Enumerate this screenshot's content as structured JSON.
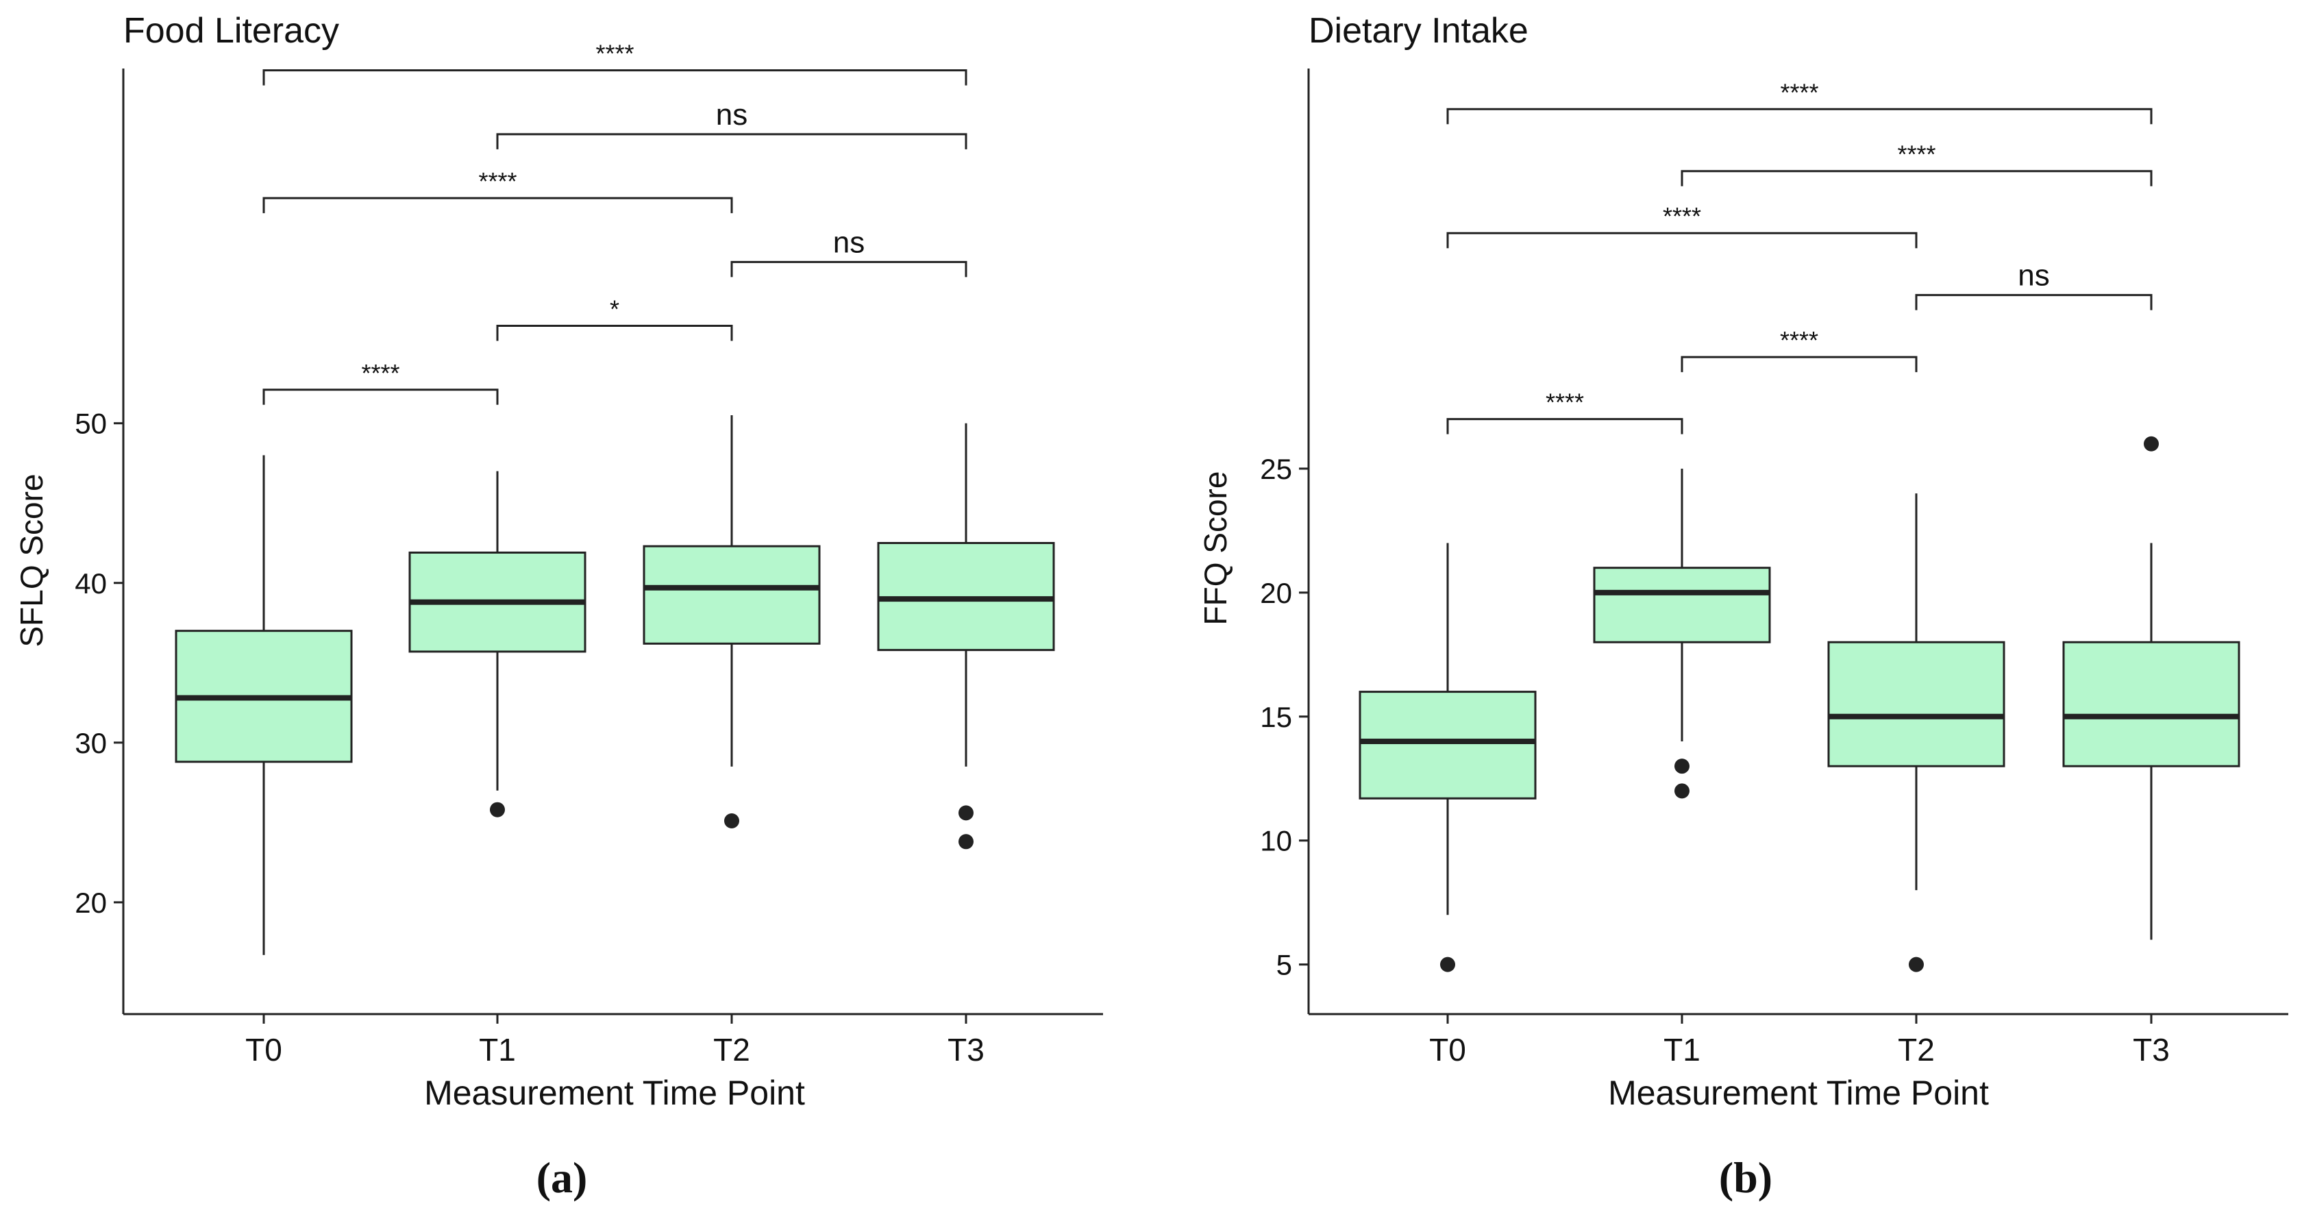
{
  "colors": {
    "box_fill": "#b5f7cd",
    "ink": "#222222"
  },
  "chart_data": [
    {
      "panel": "(a)",
      "type": "boxplot",
      "title": "Food Literacy",
      "xlabel": "Measurement Time Point",
      "ylabel": "SFLQ Score",
      "categories": [
        "T0",
        "T1",
        "T2",
        "T3"
      ],
      "ylim": [
        13,
        72
      ],
      "yticks": [
        20,
        30,
        40,
        50
      ],
      "boxes": [
        {
          "q1": 28.8,
          "median": 32.8,
          "q3": 37.0,
          "whisker_low": 16.7,
          "whisker_high": 48.0,
          "outliers": []
        },
        {
          "q1": 35.7,
          "median": 38.8,
          "q3": 41.9,
          "whisker_low": 27.0,
          "whisker_high": 47.0,
          "outliers": [
            25.8
          ]
        },
        {
          "q1": 36.2,
          "median": 39.7,
          "q3": 42.3,
          "whisker_low": 28.5,
          "whisker_high": 50.5,
          "outliers": [
            25.1
          ]
        },
        {
          "q1": 35.8,
          "median": 39.0,
          "q3": 42.5,
          "whisker_low": 28.5,
          "whisker_high": 50.0,
          "outliers": [
            25.6,
            23.8
          ]
        }
      ],
      "comparisons": [
        {
          "from": 0,
          "to": 1,
          "y": 52.1,
          "label": "****"
        },
        {
          "from": 1,
          "to": 2,
          "y": 56.1,
          "label": "*"
        },
        {
          "from": 2,
          "to": 3,
          "y": 60.1,
          "label": "ns"
        },
        {
          "from": 0,
          "to": 2,
          "y": 64.1,
          "label": "****"
        },
        {
          "from": 1,
          "to": 3,
          "y": 68.1,
          "label": "ns"
        },
        {
          "from": 0,
          "to": 3,
          "y": 72.1,
          "label": "****"
        }
      ],
      "grid": false
    },
    {
      "panel": "(b)",
      "type": "boxplot",
      "title": "Dietary Intake",
      "xlabel": "Measurement Time Point",
      "ylabel": "FFQ Score",
      "categories": [
        "T0",
        "T1",
        "T2",
        "T3"
      ],
      "ylim": [
        3,
        41
      ],
      "yticks": [
        5,
        10,
        15,
        20,
        25
      ],
      "boxes": [
        {
          "q1": 11.7,
          "median": 14.0,
          "q3": 16.0,
          "whisker_low": 7.0,
          "whisker_high": 22.0,
          "outliers": [
            5.0
          ]
        },
        {
          "q1": 18.0,
          "median": 20.0,
          "q3": 21.0,
          "whisker_low": 14.0,
          "whisker_high": 25.0,
          "outliers": [
            13.0,
            12.0
          ]
        },
        {
          "q1": 13.0,
          "median": 15.0,
          "q3": 18.0,
          "whisker_low": 8.0,
          "whisker_high": 24.0,
          "outliers": [
            5.0
          ]
        },
        {
          "q1": 13.0,
          "median": 15.0,
          "q3": 18.0,
          "whisker_low": 6.0,
          "whisker_high": 22.0,
          "outliers": [
            26.0
          ]
        }
      ],
      "comparisons": [
        {
          "from": 0,
          "to": 1,
          "y": 27.0,
          "label": "****"
        },
        {
          "from": 1,
          "to": 2,
          "y": 29.5,
          "label": "****"
        },
        {
          "from": 2,
          "to": 3,
          "y": 32.0,
          "label": "ns"
        },
        {
          "from": 0,
          "to": 2,
          "y": 34.5,
          "label": "****"
        },
        {
          "from": 1,
          "to": 3,
          "y": 37.0,
          "label": "****"
        },
        {
          "from": 0,
          "to": 3,
          "y": 39.5,
          "label": "****"
        }
      ],
      "grid": false
    }
  ]
}
